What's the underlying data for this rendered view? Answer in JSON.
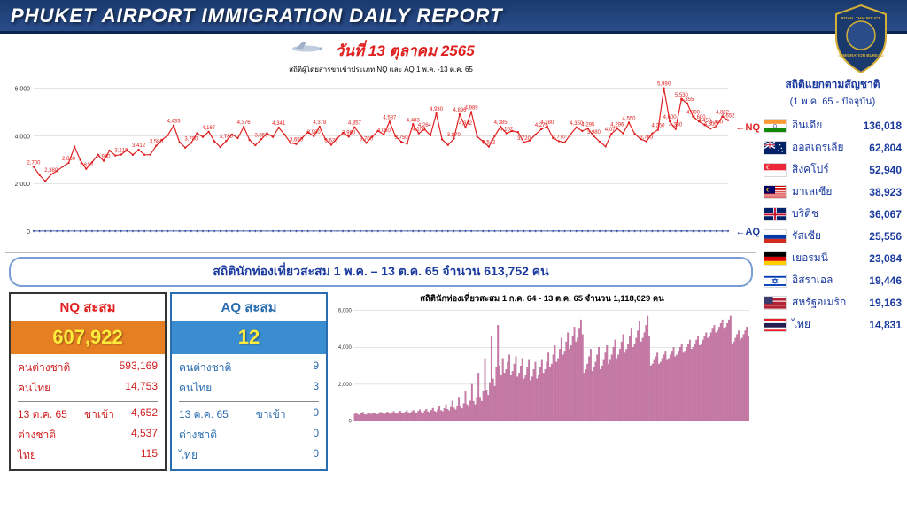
{
  "header": {
    "title": "PHUKET AIRPORT IMMIGRATION DAILY REPORT"
  },
  "date_label": "วันที่ 13 ตุลาคม 2565",
  "chart1": {
    "type": "line",
    "title": "สถิติผู้โดยสารขาเข้าประเภท NQ และ AQ 1 พ.ค. -13 ต.ค. 65",
    "series_nq": {
      "label": "NQ",
      "color": "#e02020",
      "marker": "circle",
      "values": [
        2700,
        2350,
        2100,
        2380,
        2520,
        2710,
        2860,
        3542,
        2980,
        2610,
        2880,
        3200,
        2950,
        3380,
        3170,
        3210,
        3400,
        3201,
        3412,
        3202,
        3205,
        3580,
        3820,
        4020,
        4433,
        3720,
        3500,
        3700,
        4100,
        3950,
        4167,
        3760,
        3520,
        3780,
        4050,
        3900,
        4376,
        3820,
        3600,
        3850,
        4100,
        3950,
        4341,
        4049,
        3700,
        3650,
        3900,
        4150,
        3980,
        4378,
        3850,
        3620,
        3880,
        4120,
        3960,
        4357,
        4027,
        3700,
        3950,
        4200,
        4050,
        4587,
        3980,
        3750,
        3662,
        4483,
        4100,
        4264,
        4015,
        4930,
        3840,
        3610,
        3870,
        4896,
        4342,
        4989,
        3960,
        3760,
        3542,
        3980,
        4385,
        4102,
        4199,
        4150,
        3720,
        3800,
        4050,
        4276,
        4380,
        3900,
        3770,
        3720,
        4058,
        4350,
        4200,
        4295,
        3980,
        3750,
        3550,
        4077,
        4296,
        4100,
        4550,
        4080,
        3860,
        3765,
        4097,
        4250,
        5990,
        4600,
        4280,
        5530,
        5355,
        4800,
        4600,
        4450,
        4300,
        4400,
        4802,
        4652
      ]
    },
    "series_aq": {
      "label": "AQ",
      "color": "#1a3a9e",
      "values_const": 10,
      "count": 120
    },
    "ylim": [
      0,
      6200
    ],
    "yticks": [
      0,
      2000,
      4000,
      6000
    ],
    "grid_color": "#c8c8c8",
    "background": "#ffffff",
    "label_fontsize": 6
  },
  "banner": "สถิตินักท่องเที่ยวสะสม 1 พ.ค. – 13 ต.ค. 65 จำนวน 613,752 คน",
  "nq_box": {
    "title": "NQ สะสม",
    "big": "607,922",
    "rows1": [
      {
        "l": "คนต่างชาติ",
        "v": "593,169"
      },
      {
        "l": "คนไทย",
        "v": "14,753"
      }
    ],
    "date": "13 ต.ค. 65",
    "entry": "ขาเข้า",
    "entry_v": "4,652",
    "rows2": [
      {
        "l": "ต่างชาติ",
        "v": "4,537"
      },
      {
        "l": "ไทย",
        "v": "115"
      }
    ]
  },
  "aq_box": {
    "title": "AQ สะสม",
    "big": "12",
    "rows1": [
      {
        "l": "คนต่างชาติ",
        "v": "9"
      },
      {
        "l": "คนไทย",
        "v": "3"
      }
    ],
    "date": "13 ต.ค. 65",
    "entry": "ขาเข้า",
    "entry_v": "0",
    "rows2": [
      {
        "l": "ต่างชาติ",
        "v": "0"
      },
      {
        "l": "ไทย",
        "v": "0"
      }
    ]
  },
  "chart2": {
    "type": "bar",
    "title": "สถิตินักท่องเที่ยวสะสม 1 ก.ค. 64 - 13 ต.ค. 65 จำนวน 1,118,029 คน",
    "bar_color": "#c97ba8",
    "border_color": "#a05080",
    "ylim": [
      0,
      6000
    ],
    "yticks": [
      0,
      2000,
      4000,
      6000
    ],
    "grid_color": "#c8c8c8",
    "values": [
      380,
      410,
      350,
      320,
      420,
      480,
      360,
      340,
      400,
      440,
      370,
      410,
      450,
      390,
      350,
      420,
      480,
      400,
      360,
      440,
      500,
      420,
      380,
      460,
      520,
      430,
      390,
      470,
      540,
      440,
      400,
      490,
      560,
      460,
      410,
      510,
      580,
      470,
      430,
      540,
      620,
      490,
      440,
      560,
      650,
      510,
      460,
      590,
      700,
      540,
      490,
      630,
      780,
      580,
      520,
      680,
      900,
      640,
      560,
      750,
      1100,
      720,
      620,
      840,
      1300,
      800,
      680,
      950,
      1600,
      900,
      760,
      1100,
      2000,
      1080,
      900,
      1300,
      2600,
      1300,
      1080,
      1600,
      3400,
      1700,
      1400,
      2100,
      4600,
      2300,
      1900,
      2900,
      5200,
      3000,
      2500,
      3400,
      2600,
      2800,
      3200,
      3600,
      2500,
      2700,
      3100,
      3500,
      2400,
      2600,
      3000,
      3400,
      2300,
      2500,
      2900,
      3300,
      2200,
      2400,
      2800,
      3200,
      2300,
      2500,
      2900,
      3300,
      2600,
      2800,
      3200,
      3700,
      2900,
      3100,
      3600,
      4100,
      3200,
      3400,
      3900,
      4500,
      3600,
      3800,
      4300,
      4800,
      3900,
      4100,
      4600,
      5100,
      4300,
      4500,
      5000,
      5500,
      4700,
      2600,
      2800,
      3100,
      3500,
      3900,
      2700,
      2900,
      3200,
      3600,
      4000,
      2800,
      3000,
      3300,
      3700,
      4100,
      3100,
      3300,
      3600,
      4000,
      4400,
      3400,
      3600,
      3900,
      4300,
      4700,
      3700,
      3900,
      4200,
      4600,
      5000,
      4000,
      4200,
      4500,
      4900,
      5400,
      4300,
      4500,
      4800,
      5200,
      5700,
      4600,
      3000,
      3100,
      3300,
      3500,
      3700,
      3100,
      3200,
      3400,
      3600,
      3800,
      3300,
      3400,
      3600,
      3800,
      4000,
      3500,
      3600,
      3800,
      4000,
      4200,
      3700,
      3800,
      4000,
      4200,
      4400,
      3900,
      4000,
      4200,
      4400,
      4600,
      4100,
      4200,
      4400,
      4600,
      4800,
      4500,
      4600,
      4800,
      5000,
      5200,
      4800,
      4900,
      5100,
      5300,
      5500,
      5000,
      5100,
      5300,
      5500,
      5700,
      4200,
      4300,
      4500,
      4700,
      4900,
      4400,
      4500,
      4700,
      4900,
      5100,
      4600
    ]
  },
  "nationalities": {
    "title": "สถิติแยกตามสัญชาติ",
    "subtitle": "(1 พ.ค. 65 - ปัจจุบัน)",
    "rows": [
      {
        "name": "อินเดีย",
        "value": "136,018",
        "flag": "in"
      },
      {
        "name": "ออสเตรเลีย",
        "value": "62,804",
        "flag": "au"
      },
      {
        "name": "สิงคโปร์",
        "value": "52,940",
        "flag": "sg"
      },
      {
        "name": "มาเลเซีย",
        "value": "38,923",
        "flag": "my"
      },
      {
        "name": "บริติช",
        "value": "36,067",
        "flag": "gb"
      },
      {
        "name": "รัสเซีย",
        "value": "25,556",
        "flag": "ru"
      },
      {
        "name": "เยอรมนี",
        "value": "23,084",
        "flag": "de"
      },
      {
        "name": "อิสราเอล",
        "value": "19,446",
        "flag": "il"
      },
      {
        "name": "สหรัฐอเมริก",
        "value": "19,163",
        "flag": "us"
      },
      {
        "name": "ไทย",
        "value": "14,831",
        "flag": "th"
      }
    ]
  },
  "flags": {
    "in": [
      [
        "#ff9933",
        0,
        5.33
      ],
      [
        "#ffffff",
        5.33,
        5.33
      ],
      [
        "#138808",
        10.66,
        5.34
      ]
    ],
    "au": [
      [
        "#012169",
        0,
        16
      ]
    ],
    "sg": [
      [
        "#ed2939",
        0,
        8
      ],
      [
        "#ffffff",
        8,
        8
      ]
    ],
    "my": [
      [
        "#cc0001",
        0,
        16
      ]
    ],
    "gb": [
      [
        "#012169",
        0,
        16
      ]
    ],
    "ru": [
      [
        "#ffffff",
        0,
        5.33
      ],
      [
        "#0039a6",
        5.33,
        5.33
      ],
      [
        "#d52b1e",
        10.66,
        5.34
      ]
    ],
    "de": [
      [
        "#000000",
        0,
        5.33
      ],
      [
        "#dd0000",
        5.33,
        5.33
      ],
      [
        "#ffce00",
        10.66,
        5.34
      ]
    ],
    "il": [
      [
        "#ffffff",
        0,
        16
      ],
      [
        "#0038b8",
        2,
        2
      ],
      [
        "#0038b8",
        12,
        2
      ]
    ],
    "us": [
      [
        "#b22234",
        0,
        16
      ]
    ],
    "th": [
      [
        "#ed1c24",
        0,
        2.66
      ],
      [
        "#ffffff",
        2.66,
        2.66
      ],
      [
        "#241d4f",
        5.33,
        5.33
      ],
      [
        "#ffffff",
        10.66,
        2.66
      ],
      [
        "#ed1c24",
        13.33,
        2.67
      ]
    ]
  }
}
